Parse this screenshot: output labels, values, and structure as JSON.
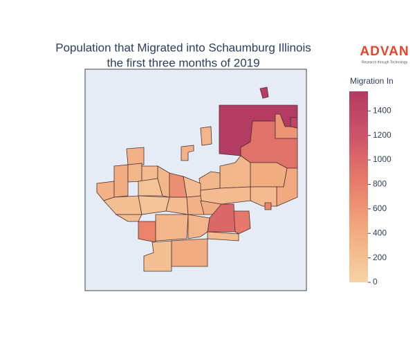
{
  "chart_data": {
    "type": "choropleth",
    "title": [
      "Population that Migrated into Schaumburg Illinois",
      "the first three months of 2019"
    ],
    "logo": {
      "name": "ADVAN",
      "tagline": "Research through Technology"
    },
    "colorbar_title": "Migration In",
    "colorscale": [
      "#f6d3a5",
      "#f2ad82",
      "#e87f6a",
      "#cf5669",
      "#b33b62"
    ],
    "zlim": [
      0,
      1560
    ],
    "zticks": [
      0,
      200,
      400,
      600,
      800,
      1000,
      1200,
      1400
    ],
    "values": [
      1550,
      1500,
      900,
      600,
      1400,
      400,
      420,
      250,
      700,
      300,
      300,
      300,
      350,
      350,
      400,
      350,
      300,
      250,
      150,
      300,
      650,
      250,
      250,
      200,
      150,
      250,
      350,
      400,
      1000,
      850,
      750,
      250,
      300,
      300,
      200,
      400,
      250
    ]
  }
}
